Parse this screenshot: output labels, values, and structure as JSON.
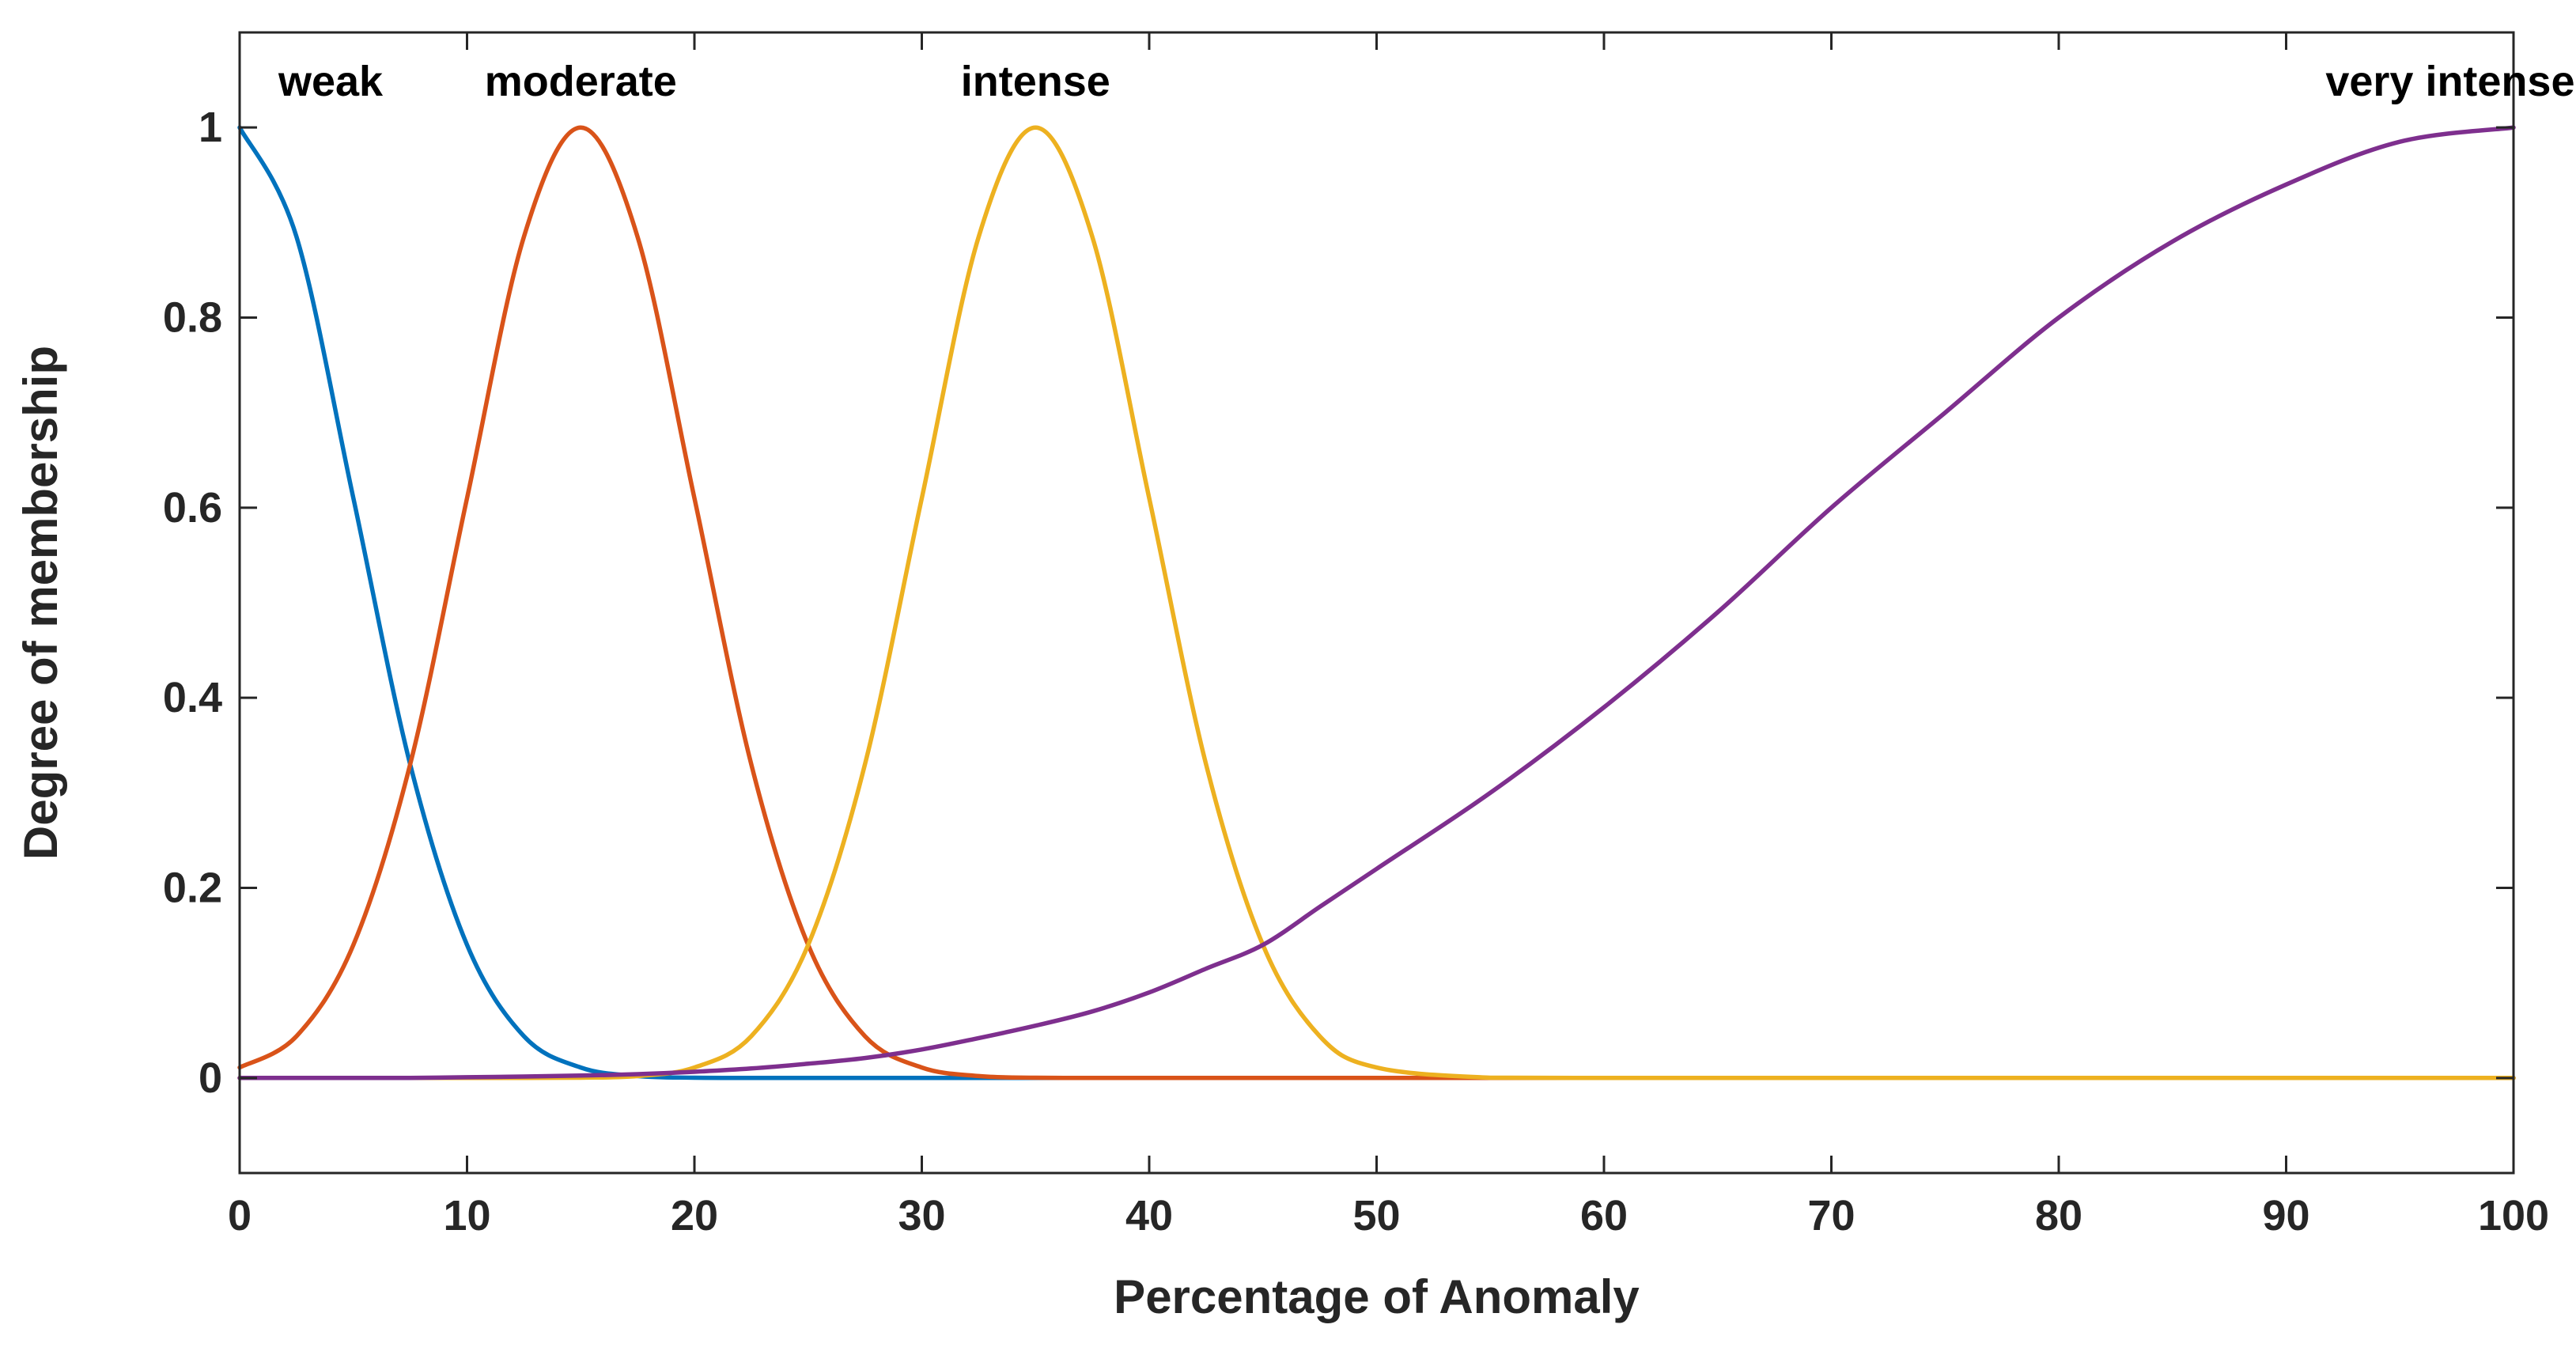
{
  "chart_data": {
    "type": "line",
    "title": "",
    "xlabel": "Percentage of Anomaly",
    "ylabel": "Degree of membership",
    "xlim": [
      0,
      100
    ],
    "ylim": [
      -0.1,
      1.1
    ],
    "grid": false,
    "x_ticks": [
      0,
      10,
      20,
      30,
      40,
      50,
      60,
      70,
      80,
      90,
      100
    ],
    "x_tick_labels": [
      "0",
      "10",
      "20",
      "30",
      "40",
      "50",
      "60",
      "70",
      "80",
      "90",
      "100"
    ],
    "y_ticks": [
      0,
      0.2,
      0.4,
      0.6,
      0.8,
      1
    ],
    "y_tick_labels": [
      "0",
      "0.2",
      "0.4",
      "0.6",
      "0.8",
      "1"
    ],
    "x": [
      0,
      2.5,
      5,
      7.5,
      10,
      12.5,
      15,
      17.5,
      20,
      22.5,
      25,
      27.5,
      30,
      32.5,
      35,
      37.5,
      40,
      42.5,
      45,
      47.5,
      50,
      55,
      60,
      65,
      70,
      75,
      80,
      85,
      90,
      95,
      100
    ],
    "series": [
      {
        "name": "weak",
        "color": "#0072BD",
        "values": [
          1.0,
          0.885,
          0.61,
          0.33,
          0.14,
          0.044,
          0.011,
          0.002,
          0.0003,
          0.0,
          0.0,
          0.0,
          0.0,
          0.0,
          0.0,
          0.0,
          0.0,
          0.0,
          0.0,
          0.0,
          0.0,
          0.0,
          0.0,
          0.0,
          0.0,
          0.0,
          0.0,
          0.0,
          0.0,
          0.0,
          0.0
        ]
      },
      {
        "name": "moderate",
        "color": "#D95319",
        "values": [
          0.011,
          0.044,
          0.14,
          0.33,
          0.61,
          0.885,
          1.0,
          0.885,
          0.61,
          0.33,
          0.14,
          0.044,
          0.011,
          0.002,
          0.0003,
          0.0,
          0.0,
          0.0,
          0.0,
          0.0,
          0.0,
          0.0,
          0.0,
          0.0,
          0.0,
          0.0,
          0.0,
          0.0,
          0.0,
          0.0,
          0.0
        ]
      },
      {
        "name": "intense",
        "color": "#EDB120",
        "values": [
          0.0,
          0.0,
          0.0,
          0.0,
          0.0,
          0.0,
          0.0003,
          0.002,
          0.011,
          0.044,
          0.14,
          0.33,
          0.61,
          0.885,
          1.0,
          0.885,
          0.61,
          0.33,
          0.14,
          0.044,
          0.011,
          0.0003,
          0.0,
          0.0,
          0.0,
          0.0,
          0.0,
          0.0,
          0.0,
          0.0,
          0.0
        ]
      },
      {
        "name": "very intense",
        "color": "#7E2F8E",
        "values": [
          0.0,
          0.0,
          0.0,
          0.0,
          0.0008,
          0.0015,
          0.0025,
          0.004,
          0.0065,
          0.01,
          0.015,
          0.021,
          0.03,
          0.042,
          0.055,
          0.07,
          0.09,
          0.115,
          0.14,
          0.18,
          0.22,
          0.3,
          0.39,
          0.49,
          0.6,
          0.7,
          0.8,
          0.88,
          0.94,
          0.985,
          1.0
        ]
      }
    ],
    "annotations": [
      {
        "text": "weak",
        "x": 4,
        "y": 1.05
      },
      {
        "text": "moderate",
        "x": 15,
        "y": 1.05
      },
      {
        "text": "intense",
        "x": 35,
        "y": 1.05
      },
      {
        "text": "very intense",
        "x": 90,
        "y": 1.05
      }
    ]
  }
}
